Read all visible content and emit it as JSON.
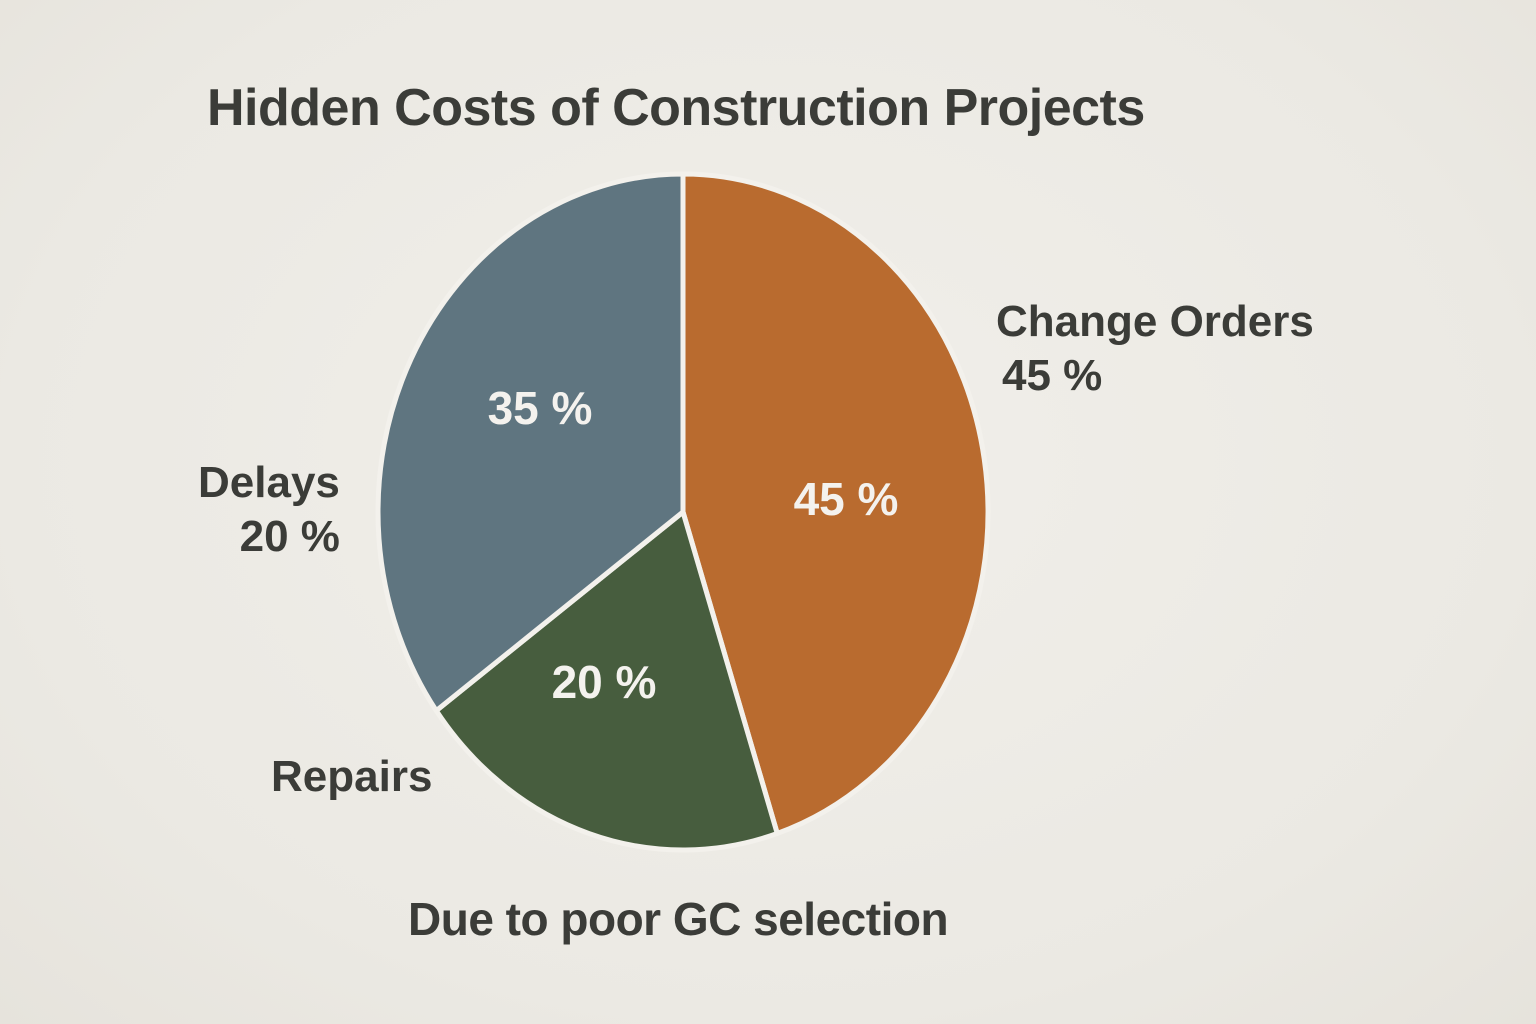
{
  "chart_data": {
    "type": "pie",
    "title": "Hidden Costs of Construction Projects",
    "subtitle": "Due to poor GC selection",
    "slices": [
      {
        "label": "Change Orders",
        "value": 45,
        "display": "45 %",
        "color": "#b96b2f"
      },
      {
        "label": "Repairs",
        "value": 20,
        "display": "20 %",
        "color": "#475d3e"
      },
      {
        "label": "",
        "value": 35,
        "display": "35 %",
        "color": "#5f7580"
      }
    ],
    "external_labels": {
      "change_orders": {
        "name": "Change Orders",
        "pct": "45 %"
      },
      "delays": {
        "name": "Delays",
        "pct": "20 %"
      },
      "repairs": {
        "name": "Repairs"
      }
    }
  }
}
